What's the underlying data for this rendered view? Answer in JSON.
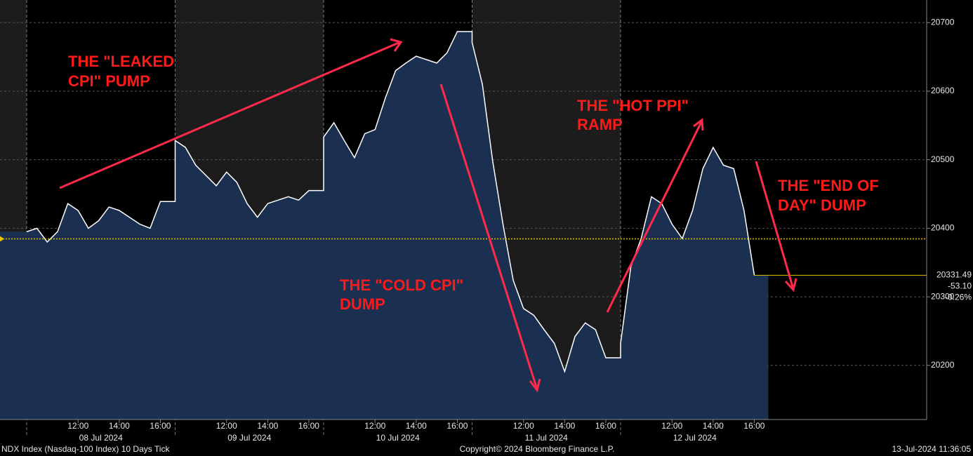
{
  "chart_data": {
    "type": "area",
    "footer_left": "NDX Index (Nasdaq-100 Index) 10 Days  Tick",
    "footer_center": "Copyright© 2024 Bloomberg Finance L.P.",
    "footer_right": "13-Jul-2024 11:36:05",
    "days": [
      "08 Jul 2024",
      "09 Jul 2024",
      "10 Jul 2024",
      "11 Jul 2024",
      "12 Jul 2024"
    ],
    "time_ticks": [
      "12:00",
      "14:00",
      "16:00"
    ],
    "x": [
      "08 Jul 2024 09:30",
      "08 Jul 2024 10:00",
      "08 Jul 2024 10:30",
      "08 Jul 2024 11:00",
      "08 Jul 2024 11:30",
      "08 Jul 2024 12:00",
      "08 Jul 2024 12:30",
      "08 Jul 2024 13:00",
      "08 Jul 2024 13:30",
      "08 Jul 2024 14:00",
      "08 Jul 2024 14:30",
      "08 Jul 2024 15:00",
      "08 Jul 2024 15:30",
      "08 Jul 2024 16:00",
      "09 Jul 2024 09:30",
      "09 Jul 2024 10:00",
      "09 Jul 2024 10:30",
      "09 Jul 2024 11:00",
      "09 Jul 2024 11:30",
      "09 Jul 2024 12:00",
      "09 Jul 2024 12:30",
      "09 Jul 2024 13:00",
      "09 Jul 2024 13:30",
      "09 Jul 2024 14:00",
      "09 Jul 2024 14:30",
      "09 Jul 2024 15:00",
      "09 Jul 2024 15:30",
      "09 Jul 2024 16:00",
      "10 Jul 2024 09:30",
      "10 Jul 2024 10:00",
      "10 Jul 2024 10:30",
      "10 Jul 2024 11:00",
      "10 Jul 2024 11:30",
      "10 Jul 2024 12:00",
      "10 Jul 2024 12:30",
      "10 Jul 2024 13:00",
      "10 Jul 2024 13:30",
      "10 Jul 2024 14:00",
      "10 Jul 2024 14:30",
      "10 Jul 2024 15:00",
      "10 Jul 2024 15:30",
      "10 Jul 2024 16:00",
      "11 Jul 2024 09:30",
      "11 Jul 2024 10:00",
      "11 Jul 2024 10:30",
      "11 Jul 2024 11:00",
      "11 Jul 2024 11:30",
      "11 Jul 2024 12:00",
      "11 Jul 2024 12:30",
      "11 Jul 2024 13:00",
      "11 Jul 2024 13:30",
      "11 Jul 2024 14:00",
      "11 Jul 2024 14:30",
      "11 Jul 2024 15:00",
      "11 Jul 2024 15:30",
      "11 Jul 2024 16:00",
      "12 Jul 2024 09:30",
      "12 Jul 2024 10:00",
      "12 Jul 2024 10:30",
      "12 Jul 2024 11:00",
      "12 Jul 2024 11:30",
      "12 Jul 2024 12:00",
      "12 Jul 2024 12:30",
      "12 Jul 2024 13:00",
      "12 Jul 2024 13:30",
      "12 Jul 2024 14:00",
      "12 Jul 2024 14:30",
      "12 Jul 2024 15:00",
      "12 Jul 2024 15:30",
      "12 Jul 2024 16:00"
    ],
    "values": [
      20395,
      20400,
      20380,
      20395,
      20436,
      20426,
      20400,
      20411,
      20431,
      20426,
      20416,
      20406,
      20400,
      20439,
      20528,
      20518,
      20492,
      20477,
      20462,
      20482,
      20467,
      20436,
      20416,
      20436,
      20441,
      20446,
      20441,
      20455,
      20533,
      20554,
      20528,
      20503,
      20538,
      20544,
      20590,
      20630,
      20641,
      20651,
      20646,
      20641,
      20656,
      20687,
      20671,
      20610,
      20498,
      20406,
      20324,
      20283,
      20273,
      20252,
      20232,
      20191,
      20242,
      20262,
      20252,
      20211,
      20232,
      20344,
      20385,
      20446,
      20436,
      20406,
      20385,
      20426,
      20487,
      20518,
      20492,
      20487,
      20426,
      20331.49
    ],
    "line_color": "#ffffff",
    "area_color": "#1b3050",
    "ylim": [
      20121,
      20733
    ],
    "yticks": [
      20200,
      20300,
      20400,
      20500,
      20600,
      20700
    ],
    "grid": true,
    "previous_close": 20384.59,
    "last": 20331.49,
    "change": {
      "value": -53.1,
      "label": "-53.10"
    },
    "change_pct": {
      "value": -0.26,
      "label": "-0.26%"
    },
    "annotations": [
      "THE \"LEAKED",
      "CPI\" PUMP",
      "THE \"COLD CPI\"",
      "DUMP",
      "THE \"HOT PPI\"",
      "RAMP",
      "THE \"END OF",
      "DAY\" DUMP"
    ]
  }
}
